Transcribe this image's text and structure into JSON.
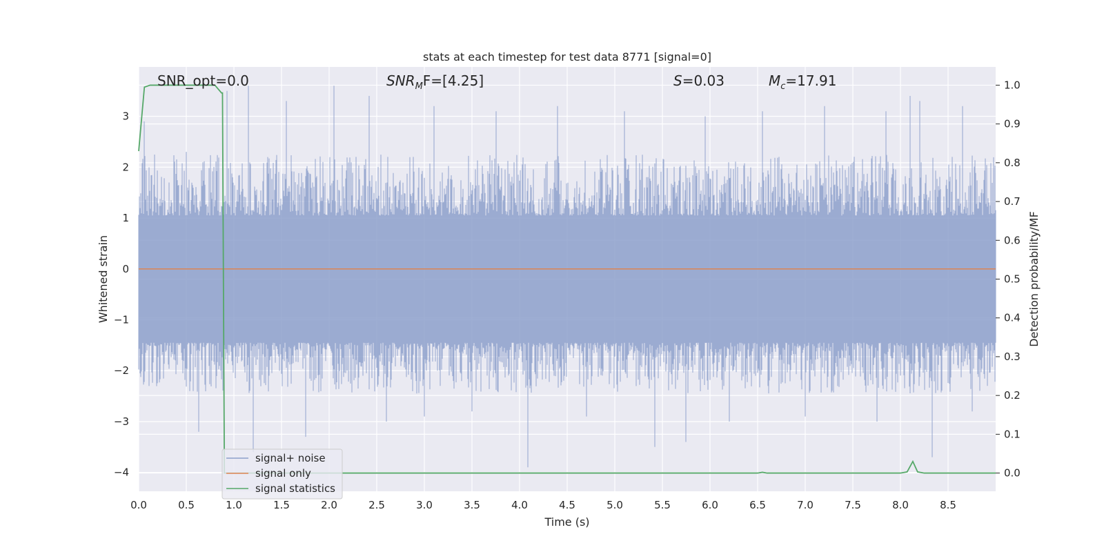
{
  "chart_data": {
    "type": "line",
    "title": "stats at each timestep for test data 8771 [signal=0]",
    "xlabel": "Time (s)",
    "ylabel_left": "Whitened strain",
    "ylabel_right": "Detection probability/MF",
    "xlim": [
      0.0,
      9.0
    ],
    "ylim_left": [
      -4.37,
      3.97
    ],
    "ylim_right": [
      -0.047,
      1.047
    ],
    "x_ticks": [
      "0.0",
      "0.5",
      "1.0",
      "1.5",
      "2.0",
      "2.5",
      "3.0",
      "3.5",
      "4.0",
      "4.5",
      "5.0",
      "5.5",
      "6.0",
      "6.5",
      "7.0",
      "7.5",
      "8.0",
      "8.5"
    ],
    "x_tick_values": [
      0.0,
      0.5,
      1.0,
      1.5,
      2.0,
      2.5,
      3.0,
      3.5,
      4.0,
      4.5,
      5.0,
      5.5,
      6.0,
      6.5,
      7.0,
      7.5,
      8.0,
      8.5
    ],
    "y_ticks_left": [
      "3",
      "2",
      "1",
      "0",
      "−1",
      "−2",
      "−3",
      "−4"
    ],
    "y_tick_values_left": [
      3,
      2,
      1,
      0,
      -1,
      -2,
      -3,
      -4
    ],
    "y_ticks_right": [
      "1.0",
      "0.9",
      "0.8",
      "0.7",
      "0.6",
      "0.5",
      "0.4",
      "0.3",
      "0.2",
      "0.1",
      "0.0"
    ],
    "y_tick_values_right": [
      1.0,
      0.9,
      0.8,
      0.7,
      0.6,
      0.5,
      0.4,
      0.3,
      0.2,
      0.1,
      0.0
    ],
    "grid": true,
    "legend_position": "lower-left",
    "annotations": {
      "snr_opt": "SNR_opt=0.0",
      "snr_mf_main": "SNR",
      "snr_mf_sub": "M",
      "snr_mf_rest": "F=[4.25]",
      "s_var": "S",
      "s_rest": "=0.03",
      "mc_var": "M",
      "mc_sub": "c",
      "mc_rest": "=17.91"
    },
    "series": [
      {
        "name": "signal+ noise",
        "axis": "left",
        "color": "#8da0cb",
        "description_level": "noise band roughly between -1.8 and 1.3 with spikes up to 3.6 and down to -3.9",
        "spikes_up": [
          [
            0.06,
            2.9
          ],
          [
            0.5,
            2.3
          ],
          [
            0.93,
            3.5
          ],
          [
            1.15,
            3.6
          ],
          [
            1.55,
            3.3
          ],
          [
            2.05,
            3.6
          ],
          [
            2.42,
            3.4
          ],
          [
            3.1,
            3.2
          ],
          [
            3.75,
            3.1
          ],
          [
            4.4,
            3.2
          ],
          [
            5.1,
            3.1
          ],
          [
            5.95,
            3.0
          ],
          [
            6.55,
            3.1
          ],
          [
            7.2,
            3.2
          ],
          [
            7.85,
            3.1
          ],
          [
            8.1,
            3.4
          ],
          [
            8.2,
            3.3
          ],
          [
            8.65,
            3.2
          ]
        ],
        "spikes_down": [
          [
            0.11,
            -2.3
          ],
          [
            0.63,
            -3.2
          ],
          [
            1.2,
            -3.6
          ],
          [
            1.75,
            -3.3
          ],
          [
            2.6,
            -3.0
          ],
          [
            3.0,
            -2.9
          ],
          [
            3.5,
            -2.8
          ],
          [
            4.09,
            -3.9
          ],
          [
            4.7,
            -2.9
          ],
          [
            5.42,
            -3.5
          ],
          [
            5.75,
            -3.4
          ],
          [
            6.2,
            -3.0
          ],
          [
            7.0,
            -2.9
          ],
          [
            7.75,
            -3.0
          ],
          [
            8.33,
            -3.7
          ],
          [
            8.75,
            -2.8
          ]
        ]
      },
      {
        "name": "signal only",
        "axis": "left",
        "color": "#dd8452",
        "x": [
          0.0,
          9.0
        ],
        "y": [
          0.0,
          0.0
        ]
      },
      {
        "name": "signal statistics",
        "axis": "right",
        "color": "#55a868",
        "x": [
          0.0,
          0.06,
          0.12,
          0.2,
          0.5,
          0.8,
          0.87,
          0.88,
          0.9,
          0.95,
          1.0,
          2.0,
          3.0,
          4.0,
          5.0,
          6.0,
          6.5,
          6.55,
          6.6,
          7.0,
          8.0,
          8.07,
          8.13,
          8.18,
          8.25,
          9.0
        ],
        "y": [
          0.83,
          0.995,
          1.0,
          1.0,
          1.0,
          1.0,
          0.98,
          0.98,
          0.0,
          0.0,
          0.0,
          0.0,
          0.0,
          0.0,
          0.0,
          0.0,
          0.0,
          0.002,
          0.0,
          0.0,
          0.0,
          0.003,
          0.03,
          0.003,
          0.0,
          0.0
        ]
      }
    ]
  }
}
